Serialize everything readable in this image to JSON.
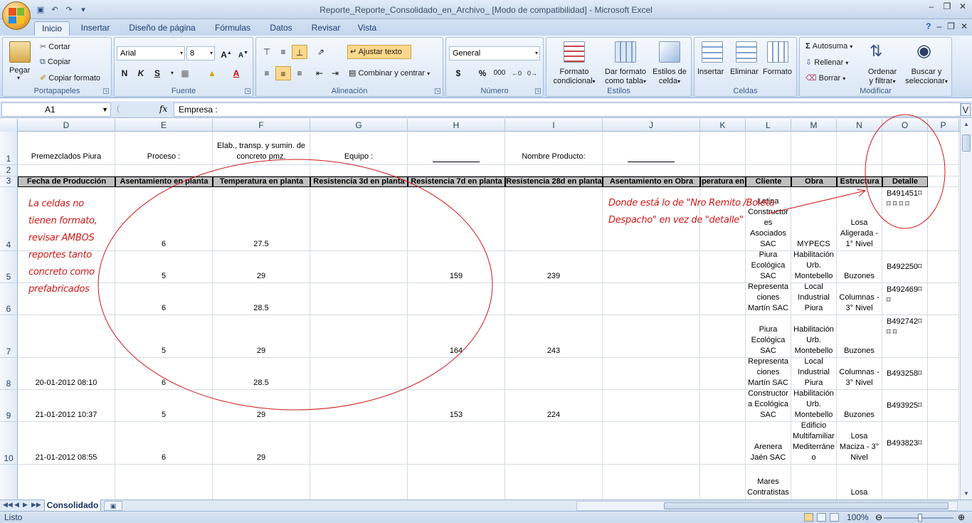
{
  "window": {
    "title": "Reporte_Reporte_Consolidado_en_Archivo_  [Modo de compatibilidad] - Microsoft Excel"
  },
  "tabs": [
    "Inicio",
    "Insertar",
    "Diseño de página",
    "Fórmulas",
    "Datos",
    "Revisar",
    "Vista"
  ],
  "ribbon": {
    "portapapeles": {
      "label": "Portapapeles",
      "pegar": "Pegar",
      "cortar": "Cortar",
      "copiar": "Copiar",
      "copiar_formato": "Copiar formato"
    },
    "fuente": {
      "label": "Fuente",
      "font": "Arial",
      "size": "8",
      "bold": "N",
      "italic": "K",
      "underline": "S"
    },
    "alineacion": {
      "label": "Alineación",
      "ajustar": "Ajustar texto",
      "combinar": "Combinar y centrar"
    },
    "numero": {
      "label": "Número",
      "format": "General",
      "currency": "$",
      "percent": "%",
      "thousands": "000"
    },
    "estilos": {
      "label": "Estilos",
      "formato_condicional": [
        "Formato",
        "condicional"
      ],
      "dar_formato": [
        "Dar formato",
        "como tabla"
      ],
      "estilos_celda": [
        "Estilos de",
        "celda"
      ]
    },
    "celdas": {
      "label": "Celdas",
      "insertar": "Insertar",
      "eliminar": "Eliminar",
      "formato": "Formato"
    },
    "modificar": {
      "label": "Modificar",
      "autosuma": "Autosuma",
      "rellenar": "Rellenar",
      "borrar": "Borrar",
      "ordenar": [
        "Ordenar",
        "y filtrar"
      ],
      "buscar": [
        "Buscar y",
        "seleccionar"
      ]
    }
  },
  "formula_bar": {
    "name_box": "A1",
    "fx": "fx",
    "content": "Empresa :"
  },
  "columns": [
    "D",
    "E",
    "F",
    "G",
    "H",
    "I",
    "J",
    "K",
    "L",
    "M",
    "N",
    "O",
    "P"
  ],
  "rows": [
    "1",
    "2",
    "3",
    "4",
    "5",
    "6",
    "7",
    "8",
    "9",
    "10"
  ],
  "row1": {
    "D": "Premezclados Piura",
    "E": "Proceso :",
    "F": "Elab., transp. y sumin. de concreto pmz.",
    "G": "Equipo  :",
    "I": "Nombre Producto:"
  },
  "headers": [
    "Fecha de Producción",
    "Asentamiento en planta",
    "Temperatura en planta",
    "Resistencia 3d en planta",
    "Resistencia 7d en planta",
    "Resistencia 28d en planta",
    "Asentamiento en Obra",
    "Temperatura en",
    "Cliente",
    "Obra",
    "Estructura",
    "Detalle"
  ],
  "data_rows": [
    {
      "row": "4",
      "D": "",
      "E": "6",
      "F": "27.5",
      "H": "",
      "I": "",
      "L": "Latina Constructor es Asociados SAC",
      "M": "MYPECS",
      "N": "Losa Aligerada - 1° Nivel",
      "O": "B491451⌑ ⌑ ⌑ ⌑ ⌑"
    },
    {
      "row": "5",
      "D": "",
      "E": "5",
      "F": "29",
      "H": "159",
      "I": "239",
      "L": "Piura Ecológica SAC",
      "M": "Habilitación Urb. Montebello",
      "N": "Buzones",
      "O": "B492250⌑"
    },
    {
      "row": "6",
      "D": "",
      "E": "6",
      "F": "28.5",
      "H": "",
      "I": "",
      "L": "Representa ciones Martín SAC",
      "M": "Local Industrial Piura",
      "N": "Columnas - 3° Nivel",
      "O": "B492469⌑ ⌑"
    },
    {
      "row": "7",
      "D": "",
      "E": "5",
      "F": "29",
      "H": "164",
      "I": "243",
      "L": "Piura Ecológica SAC",
      "M": "Habilitación Urb. Montebello",
      "N": "Buzones",
      "O": "B492742⌑ ⌑ ⌑"
    },
    {
      "row": "8",
      "D": "20-01-2012 08:10",
      "E": "6",
      "F": "28.5",
      "H": "",
      "I": "",
      "L": "Representa ciones Martín SAC",
      "M": "Local Industrial Piura",
      "N": "Columnas - 3° Nivel",
      "O": "B493258⌑"
    },
    {
      "row": "9",
      "D": "21-01-2012 10:37",
      "E": "5",
      "F": "29",
      "H": "153",
      "I": "224",
      "L": "Constructor a Ecológica SAC",
      "M": "Habilitación Urb. Montebello",
      "N": "Buzones",
      "O": "B493925⌑"
    },
    {
      "row": "10",
      "D": "21-01-2012 08:55",
      "E": "6",
      "F": "29",
      "H": "",
      "I": "",
      "L": "Arenera Jaén SAC",
      "M": "Edificio Multifamiliar Mediterráne o",
      "N": "Losa Maciza - 3° Nivel",
      "O": "B493823⌑"
    },
    {
      "row": "",
      "D": "",
      "E": "",
      "F": "",
      "H": "",
      "I": "",
      "L": "Mares Contratistas Generales",
      "M": "",
      "N": "Losa Aligerada -",
      "O": ""
    }
  ],
  "annotations": {
    "left": [
      "La celdas no",
      "tienen formato,",
      "revisar AMBOS",
      "reportes tanto",
      "concreto como",
      "prefabricados"
    ],
    "right": [
      "Donde está lo de \"Nro Remito /Boleta",
      "Despacho\" en vez de \"detalle\""
    ],
    "color": "#d01818"
  },
  "sheet_tab": "Consolidado",
  "status": {
    "text": "Listo",
    "zoom": "100%"
  }
}
